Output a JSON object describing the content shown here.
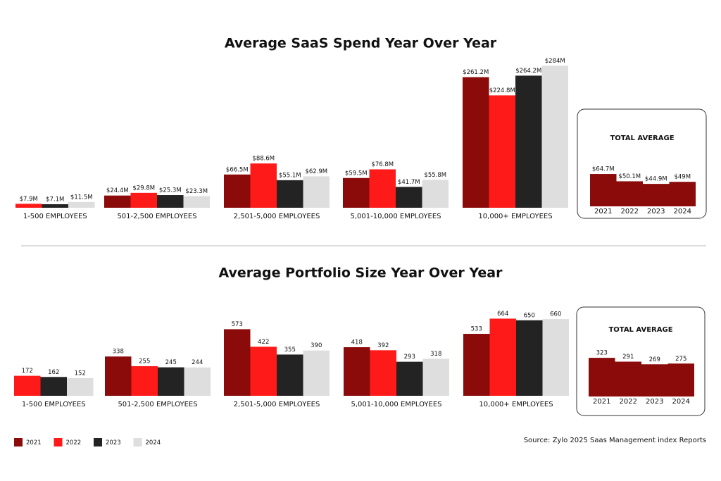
{
  "source": "Source: Zylo 2025 Saas Management index Reports",
  "chart_data": [
    {
      "type": "bar",
      "title": "Average SaaS Spend Year Over Year",
      "categories": [
        "1-500 EMPLOYEES",
        "501-2,500 EMPLOYEES",
        "2,501-5,000 EMPLOYEES",
        "5,001-10,000 EMPLOYEES",
        "10,000+ EMPLOYEES"
      ],
      "series": [
        {
          "name": "2021",
          "color": "#8b0a0a",
          "values": [
            null,
            24.4,
            66.5,
            59.5,
            261.2
          ],
          "value_labels": [
            null,
            "$24.4M",
            "$66.5M",
            "$59.5M",
            "$261.2M"
          ]
        },
        {
          "name": "2022",
          "color": "#ff1a1a",
          "values": [
            7.9,
            29.8,
            88.6,
            76.8,
            224.8
          ],
          "value_labels": [
            "$7.9M",
            "$29.8M",
            "$88.6M",
            "$76.8M",
            "$224.8M"
          ]
        },
        {
          "name": "2023",
          "color": "#232323",
          "values": [
            7.1,
            25.3,
            55.1,
            41.7,
            264.2
          ],
          "value_labels": [
            "$7.1M",
            "$25.3M",
            "$55.1M",
            "$41.7M",
            "$264.2M"
          ]
        },
        {
          "name": "2024",
          "color": "#dedede",
          "values": [
            11.5,
            23.3,
            62.9,
            55.8,
            284
          ],
          "value_labels": [
            "$11.5M",
            "$23.3M",
            "$62.9M",
            "$55.8M",
            "$284M"
          ]
        }
      ]
    },
    {
      "type": "bar",
      "title": "TOTAL AVERAGE",
      "categories": [
        "2021",
        "2022",
        "2023",
        "2024"
      ],
      "color": "#8b0a0a",
      "values": [
        64.7,
        50.1,
        44.9,
        49
      ],
      "value_labels": [
        "$64.7M",
        "$50.1M",
        "$44.9M",
        "$49M"
      ]
    },
    {
      "type": "bar",
      "title": "Average Portfolio Size Year Over Year",
      "categories": [
        "1-500 EMPLOYEES",
        "501-2,500 EMPLOYEES",
        "2,501-5,000 EMPLOYEES",
        "5,001-10,000 EMPLOYEES",
        "10,000+ EMPLOYEES"
      ],
      "series": [
        {
          "name": "2021",
          "color": "#8b0a0a",
          "values": [
            null,
            338,
            573,
            418,
            533
          ]
        },
        {
          "name": "2022",
          "color": "#ff1a1a",
          "values": [
            172,
            255,
            422,
            392,
            664
          ]
        },
        {
          "name": "2023",
          "color": "#232323",
          "values": [
            162,
            245,
            355,
            293,
            650
          ]
        },
        {
          "name": "2024",
          "color": "#dedede",
          "values": [
            152,
            244,
            390,
            318,
            660
          ]
        }
      ]
    },
    {
      "type": "bar",
      "title": "TOTAL AVERAGE",
      "categories": [
        "2021",
        "2022",
        "2023",
        "2024"
      ],
      "color": "#8b0a0a",
      "values": [
        323,
        291,
        269,
        275
      ]
    }
  ]
}
